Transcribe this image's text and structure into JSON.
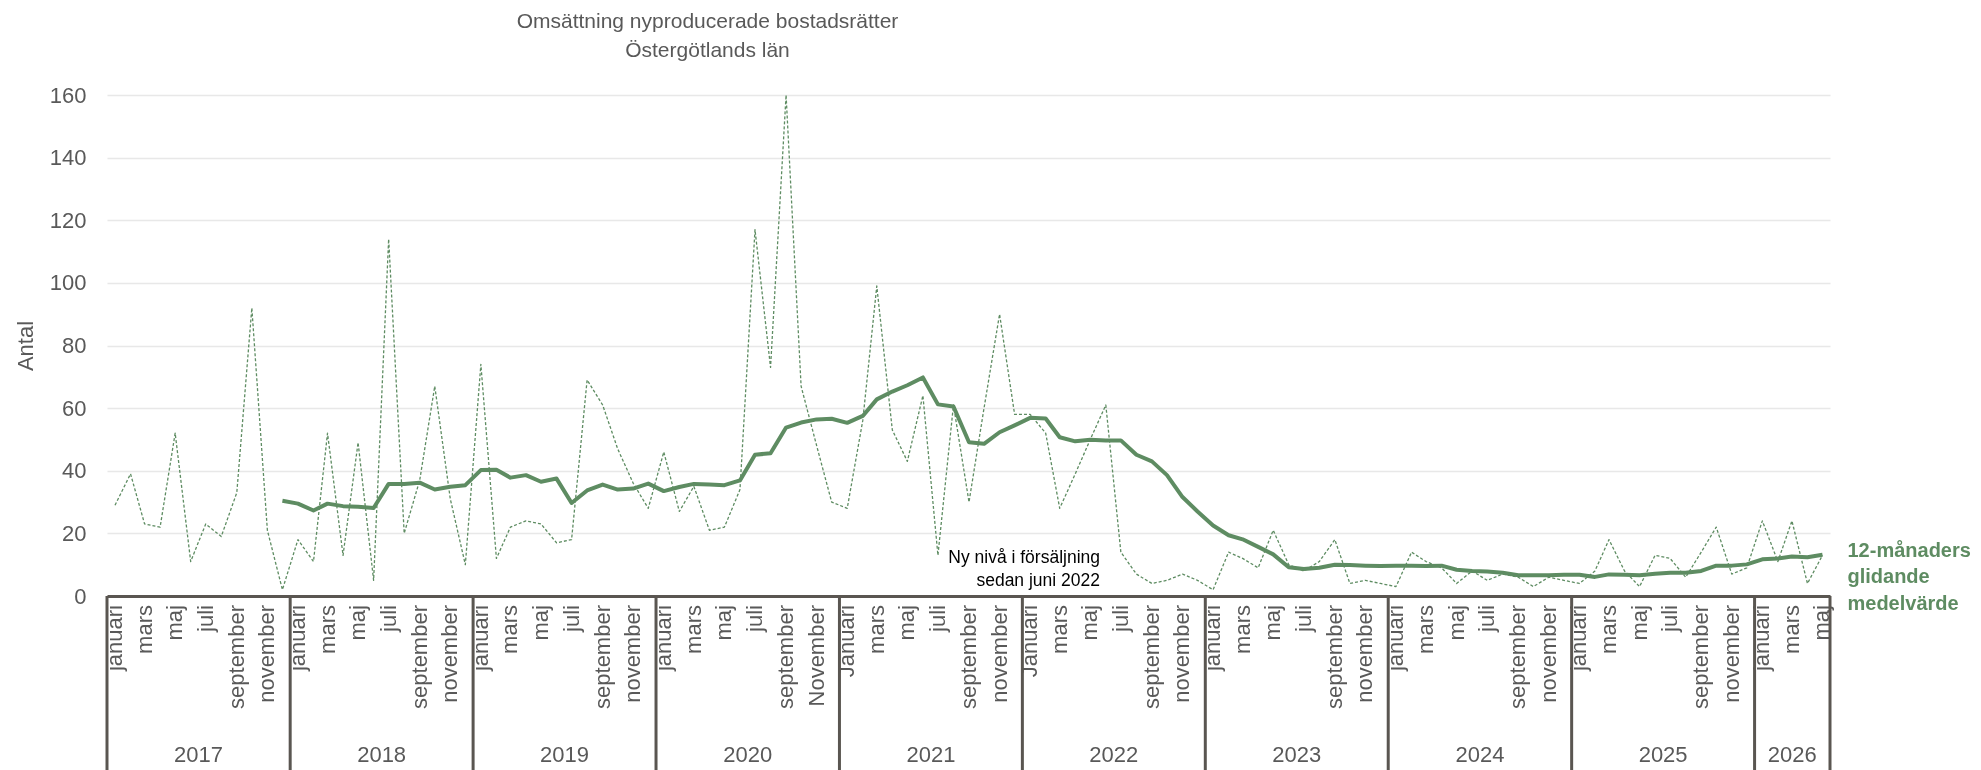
{
  "chart_data": {
    "type": "line",
    "title": "Omsättning nyproducerade bostadsrätter",
    "subtitle": "Östergötlands län",
    "ylabel": "Antal",
    "x": [
      "2017-01",
      "2017-02",
      "2017-03",
      "2017-04",
      "2017-05",
      "2017-06",
      "2017-07",
      "2017-08",
      "2017-09",
      "2017-10",
      "2017-11",
      "2017-12",
      "2018-01",
      "2018-02",
      "2018-03",
      "2018-04",
      "2018-05",
      "2018-06",
      "2018-07",
      "2018-08",
      "2018-09",
      "2018-10",
      "2018-11",
      "2018-12",
      "2019-01",
      "2019-02",
      "2019-03",
      "2019-04",
      "2019-05",
      "2019-06",
      "2019-07",
      "2019-08",
      "2019-09",
      "2019-10",
      "2019-11",
      "2019-12",
      "2020-01",
      "2020-02",
      "2020-03",
      "2020-04",
      "2020-05",
      "2020-06",
      "2020-07",
      "2020-08",
      "2020-09",
      "2020-10",
      "2020-11",
      "2020-12",
      "2021-01",
      "2021-02",
      "2021-03",
      "2021-04",
      "2021-05",
      "2021-06",
      "2021-07",
      "2021-08",
      "2021-09",
      "2021-10",
      "2021-11",
      "2021-12",
      "2022-01",
      "2022-02",
      "2022-03",
      "2022-04",
      "2022-05",
      "2022-06",
      "2022-07",
      "2022-08",
      "2022-09",
      "2022-10",
      "2022-11",
      "2022-12",
      "2023-01",
      "2023-02",
      "2023-03",
      "2023-04",
      "2023-05",
      "2023-06",
      "2023-07",
      "2023-08",
      "2023-09",
      "2023-10",
      "2023-11",
      "2023-12",
      "2024-01",
      "2024-02",
      "2024-03",
      "2024-04",
      "2024-05",
      "2024-06",
      "2024-07",
      "2024-08",
      "2024-09",
      "2024-10",
      "2024-11",
      "2024-12",
      "2025-01",
      "2025-02",
      "2025-03",
      "2025-04",
      "2025-05",
      "2025-06",
      "2025-07",
      "2025-08",
      "2025-09",
      "2025-10",
      "2025-11",
      "2025-12",
      "2026-01",
      "2026-02",
      "2026-03",
      "2026-04",
      "2026-05"
    ],
    "series": [
      {
        "color": "#5e8c62",
        "line_style": "dashed",
        "values": [
          29,
          39,
          23,
          22,
          52,
          11,
          23,
          19,
          33,
          92,
          21,
          2,
          18,
          11,
          52,
          13,
          49,
          5,
          114,
          20,
          37,
          67,
          31,
          10,
          74,
          12,
          22,
          24,
          23,
          17,
          18,
          69,
          61,
          47,
          36,
          28,
          46,
          27,
          35,
          21,
          22,
          34,
          117,
          73,
          160,
          67,
          48,
          30,
          28,
          56,
          99,
          53,
          43,
          64,
          13,
          61,
          30,
          60,
          90,
          58,
          58,
          52,
          28,
          39,
          50,
          61,
          14,
          7,
          4,
          5,
          7,
          5,
          2,
          14,
          12,
          9,
          21,
          10,
          8,
          11,
          18,
          4,
          5,
          4,
          3,
          14,
          11,
          9,
          4,
          8,
          5,
          7,
          6,
          3,
          6,
          5,
          4,
          8,
          18,
          8,
          3,
          13,
          12,
          6,
          14,
          22,
          7,
          9,
          24,
          11,
          24,
          4,
          13
        ]
      },
      {
        "name": "12-månaders glidande medelvärde",
        "color": "#5e8c62",
        "line_style": "solid",
        "values": [
          null,
          null,
          null,
          null,
          null,
          null,
          null,
          null,
          null,
          null,
          null,
          30.4,
          29.5,
          27.3,
          29.5,
          28.7,
          28.5,
          28.1,
          35.8,
          35.8,
          36.2,
          34.0,
          34.9,
          35.4,
          40.2,
          40.3,
          37.8,
          38.6,
          36.5,
          37.5,
          29.7,
          33.7,
          35.6,
          34.0,
          34.3,
          35.9,
          33.5,
          34.8,
          35.8,
          35.6,
          35.4,
          36.9,
          45.1,
          45.6,
          53.8,
          55.4,
          56.4,
          56.6,
          55.3,
          57.5,
          62.8,
          65.3,
          67.3,
          69.8,
          61.2,
          60.5,
          49.1,
          48.6,
          52.3,
          54.5,
          56.9,
          56.7,
          50.7,
          49.4,
          49.9,
          49.7,
          49.7,
          45.1,
          43.0,
          38.6,
          31.6,
          27.0,
          22.5,
          19.4,
          18.1,
          15.7,
          13.3,
          9.2,
          8.6,
          9.0,
          10.0,
          9.9,
          9.7,
          9.6,
          9.7,
          9.7,
          9.6,
          9.7,
          8.4,
          8.0,
          7.8,
          7.4,
          6.6,
          6.6,
          6.6,
          6.8,
          6.8,
          6.1,
          6.9,
          6.8,
          6.6,
          7.1,
          7.4,
          7.4,
          8.0,
          9.7,
          9.7,
          10.1,
          11.7,
          12.0,
          12.6,
          12.4,
          13.2
        ]
      }
    ],
    "xlim": [
      "2016-12-16",
      "2026-05-16"
    ],
    "xticks": [
      {
        "value": "2017-01",
        "label": "januari"
      },
      {
        "value": "2017-03",
        "label": "mars"
      },
      {
        "value": "2017-05",
        "label": "maj"
      },
      {
        "value": "2017-07",
        "label": "juli"
      },
      {
        "value": "2017-09",
        "label": "september"
      },
      {
        "value": "2017-11",
        "label": "november"
      },
      {
        "value": "2018-01",
        "label": "januari"
      },
      {
        "value": "2018-03",
        "label": "mars"
      },
      {
        "value": "2018-05",
        "label": "maj"
      },
      {
        "value": "2018-07",
        "label": "juli"
      },
      {
        "value": "2018-09",
        "label": "september"
      },
      {
        "value": "2018-11",
        "label": "november"
      },
      {
        "value": "2019-01",
        "label": "januari"
      },
      {
        "value": "2019-03",
        "label": "mars"
      },
      {
        "value": "2019-05",
        "label": "maj"
      },
      {
        "value": "2019-07",
        "label": "juli"
      },
      {
        "value": "2019-09",
        "label": "september"
      },
      {
        "value": "2019-11",
        "label": "november"
      },
      {
        "value": "2020-01",
        "label": "januari"
      },
      {
        "value": "2020-03",
        "label": "mars"
      },
      {
        "value": "2020-05",
        "label": "maj"
      },
      {
        "value": "2020-07",
        "label": "juli"
      },
      {
        "value": "2020-09",
        "label": "september"
      },
      {
        "value": "2020-11",
        "label": "November"
      },
      {
        "value": "2021-01",
        "label": "Januari"
      },
      {
        "value": "2021-03",
        "label": "mars"
      },
      {
        "value": "2021-05",
        "label": "maj"
      },
      {
        "value": "2021-07",
        "label": "juli"
      },
      {
        "value": "2021-09",
        "label": "september"
      },
      {
        "value": "2021-11",
        "label": "november"
      },
      {
        "value": "2022-01",
        "label": "Januari"
      },
      {
        "value": "2022-03",
        "label": "mars"
      },
      {
        "value": "2022-05",
        "label": "maj"
      },
      {
        "value": "2022-07",
        "label": "juli"
      },
      {
        "value": "2022-09",
        "label": "september"
      },
      {
        "value": "2022-11",
        "label": "november"
      },
      {
        "value": "2023-01",
        "label": "januari"
      },
      {
        "value": "2023-03",
        "label": "mars"
      },
      {
        "value": "2023-05",
        "label": "maj"
      },
      {
        "value": "2023-07",
        "label": "juli"
      },
      {
        "value": "2023-09",
        "label": "september"
      },
      {
        "value": "2023-11",
        "label": "november"
      },
      {
        "value": "2024-01",
        "label": "januari"
      },
      {
        "value": "2024-03",
        "label": "mars"
      },
      {
        "value": "2024-05",
        "label": "maj"
      },
      {
        "value": "2024-07",
        "label": "juli"
      },
      {
        "value": "2024-09",
        "label": "september"
      },
      {
        "value": "2024-11",
        "label": "november"
      },
      {
        "value": "2025-01",
        "label": "januari"
      },
      {
        "value": "2025-03",
        "label": "mars"
      },
      {
        "value": "2025-05",
        "label": "maj"
      },
      {
        "value": "2025-07",
        "label": "juli"
      },
      {
        "value": "2025-09",
        "label": "september"
      },
      {
        "value": "2025-11",
        "label": "november"
      },
      {
        "value": "2026-01",
        "label": "januari"
      },
      {
        "value": "2026-03",
        "label": "mars"
      },
      {
        "value": "2026-05",
        "label": "maj"
      }
    ],
    "ylim": [
      0,
      160
    ],
    "yticks": [
      0,
      20,
      40,
      60,
      80,
      100,
      120,
      140,
      160
    ],
    "grid": "y",
    "annotations": [
      "Ny nivå i försäljning\nsedan juni 2022",
      "2017",
      "2018",
      "2019",
      "2020",
      "2021",
      "2022",
      "2023",
      "2024",
      "2025",
      "2026"
    ]
  }
}
